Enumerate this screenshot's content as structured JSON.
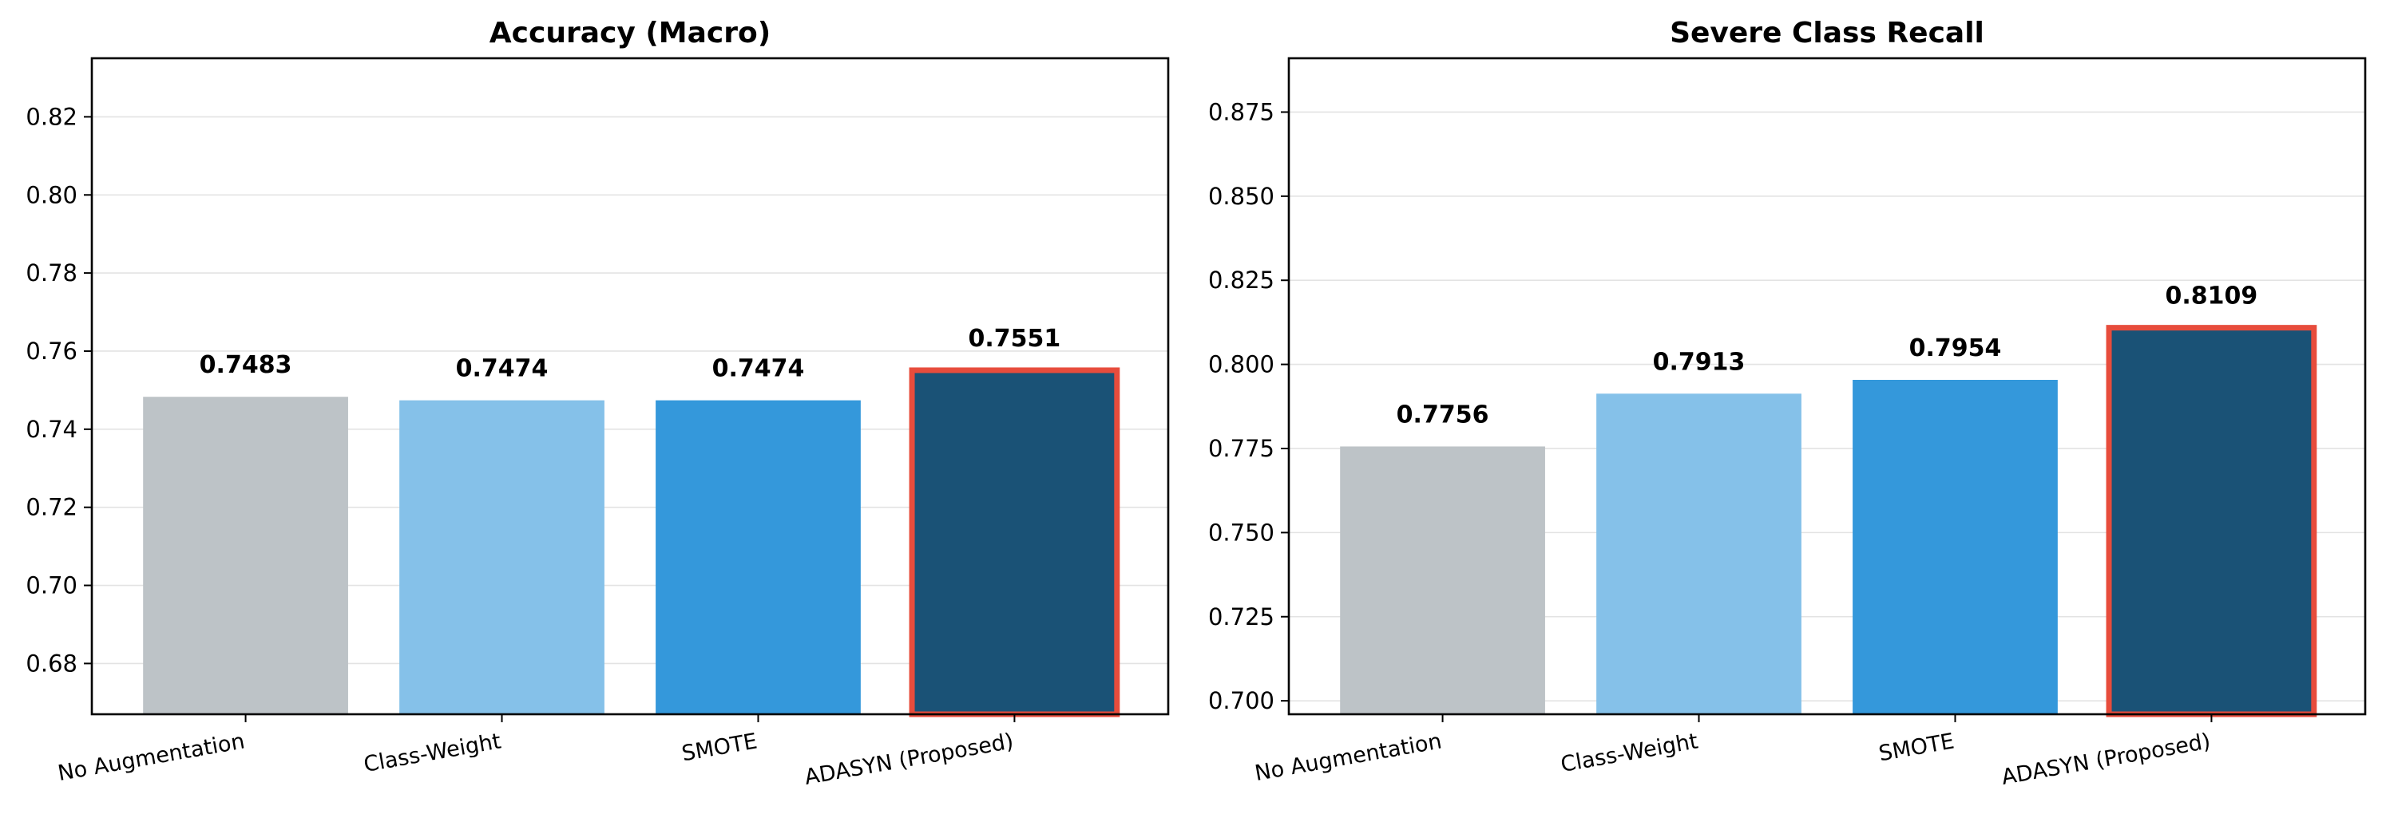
{
  "chart_data": [
    {
      "type": "bar",
      "title": "Accuracy (Macro)",
      "xlabel": "",
      "ylabel": "",
      "categories": [
        "No Augmentation",
        "Class-Weight",
        "SMOTE",
        "ADASYN (Proposed)"
      ],
      "values": [
        0.7483,
        0.7474,
        0.7474,
        0.7551
      ],
      "value_labels": [
        "0.7483",
        "0.7474",
        "0.7474",
        "0.7551"
      ],
      "colors": [
        "#bdc3c7",
        "#85c1e9",
        "#3498db",
        "#1a5276"
      ],
      "highlight_index": 3,
      "highlight_color": "#e74c3c",
      "ylim": [
        0.667,
        0.835
      ],
      "yticks": [
        0.68,
        0.7,
        0.72,
        0.74,
        0.76,
        0.78,
        0.8,
        0.82
      ],
      "ytick_labels": [
        "0.68",
        "0.70",
        "0.72",
        "0.74",
        "0.76",
        "0.78",
        "0.80",
        "0.82"
      ],
      "grid": true
    },
    {
      "type": "bar",
      "title": "Severe Class Recall",
      "xlabel": "",
      "ylabel": "",
      "categories": [
        "No Augmentation",
        "Class-Weight",
        "SMOTE",
        "ADASYN (Proposed)"
      ],
      "values": [
        0.7756,
        0.7913,
        0.7954,
        0.8109
      ],
      "value_labels": [
        "0.7756",
        "0.7913",
        "0.7954",
        "0.8109"
      ],
      "colors": [
        "#bdc3c7",
        "#85c1e9",
        "#3498db",
        "#1a5276"
      ],
      "highlight_index": 3,
      "highlight_color": "#e74c3c",
      "ylim": [
        0.696,
        0.891
      ],
      "yticks": [
        0.7,
        0.725,
        0.75,
        0.775,
        0.8,
        0.825,
        0.85,
        0.875
      ],
      "ytick_labels": [
        "0.700",
        "0.725",
        "0.750",
        "0.775",
        "0.800",
        "0.825",
        "0.850",
        "0.875"
      ],
      "grid": true
    }
  ]
}
